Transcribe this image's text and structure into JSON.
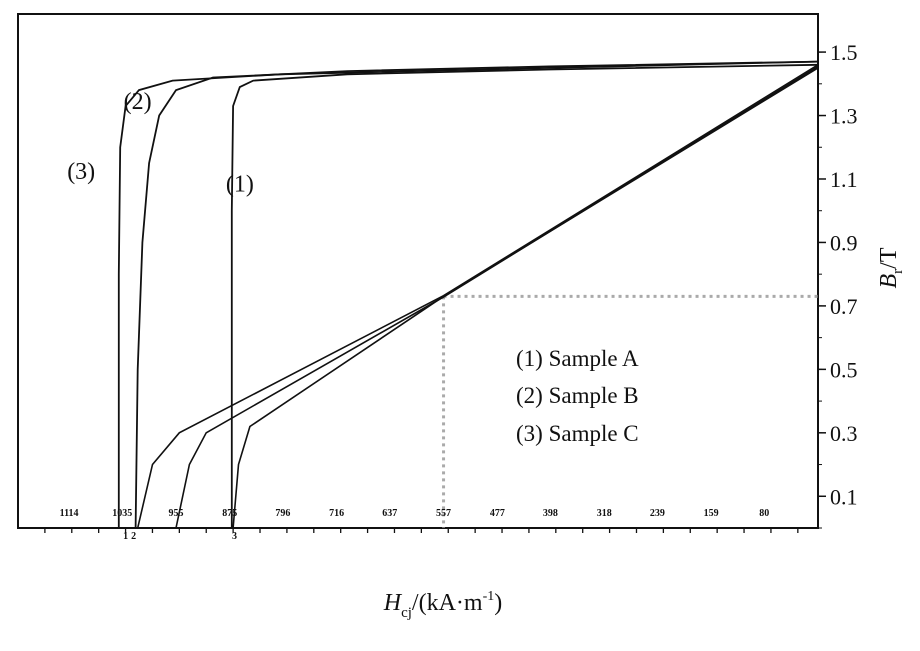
{
  "chart_data": {
    "type": "line",
    "title": "",
    "xlabel": {
      "main": "H",
      "sub": "cj",
      "rest": "/(kA·m",
      "sup": "-1",
      "close": ")"
    },
    "ylabel": {
      "main": "B",
      "sub": "r",
      "rest": "/T"
    },
    "x_tick_labels": [
      "1114",
      "1035",
      "955",
      "875",
      "796",
      "716",
      "637",
      "557",
      "477",
      "398",
      "318",
      "239",
      "159",
      "80"
    ],
    "x_ticks_values": [
      1114,
      1035,
      955,
      875,
      796,
      716,
      637,
      557,
      477,
      398,
      318,
      239,
      159,
      80
    ],
    "x_range": [
      1190,
      0
    ],
    "y_tick_labels": [
      "0.1",
      "0.3",
      "0.5",
      "0.7",
      "0.9",
      "1.1",
      "1.3",
      "1.5"
    ],
    "y_ticks_values": [
      0.1,
      0.3,
      0.5,
      0.7,
      0.9,
      1.1,
      1.3,
      1.5
    ],
    "y_range": [
      0.0,
      1.62
    ],
    "x_axis_marks": [
      "1",
      "2",
      "3"
    ],
    "x_axis_marks_x": [
      1030,
      1018,
      868
    ],
    "series": [
      {
        "name": "Sample A",
        "marker": "(1)",
        "marker_at": {
          "x": 860,
          "y": 1.06
        },
        "points": [
          [
            872,
            0.0
          ],
          [
            872,
            1.0
          ],
          [
            870,
            1.33
          ],
          [
            860,
            1.39
          ],
          [
            840,
            1.41
          ],
          [
            700,
            1.43
          ],
          [
            400,
            1.445
          ],
          [
            0,
            1.46
          ]
        ]
      },
      {
        "name": "Sample B",
        "marker": "(2)",
        "marker_at": {
          "x": 1012,
          "y": 1.32
        },
        "points": [
          [
            1015,
            0.0
          ],
          [
            1012,
            0.5
          ],
          [
            1005,
            0.9
          ],
          [
            995,
            1.15
          ],
          [
            980,
            1.3
          ],
          [
            955,
            1.38
          ],
          [
            900,
            1.42
          ],
          [
            700,
            1.44
          ],
          [
            400,
            1.455
          ],
          [
            0,
            1.47
          ]
        ]
      },
      {
        "name": "Sample C",
        "marker": "(3)",
        "marker_at": {
          "x": 1096,
          "y": 1.1
        },
        "points": [
          [
            1040,
            0.0
          ],
          [
            1040,
            0.8
          ],
          [
            1038,
            1.2
          ],
          [
            1030,
            1.33
          ],
          [
            1010,
            1.38
          ],
          [
            960,
            1.41
          ],
          [
            800,
            1.43
          ],
          [
            400,
            1.45
          ],
          [
            0,
            1.47
          ]
        ]
      }
    ],
    "recoil_lines": [
      {
        "points": [
          [
            1012,
            0.0
          ],
          [
            990,
            0.2
          ],
          [
            950,
            0.3
          ],
          [
            557,
            0.732
          ],
          [
            0,
            1.46
          ]
        ]
      },
      {
        "points": [
          [
            955,
            0.0
          ],
          [
            935,
            0.2
          ],
          [
            910,
            0.3
          ],
          [
            557,
            0.728
          ],
          [
            0,
            1.455
          ]
        ]
      },
      {
        "points": [
          [
            870,
            0.0
          ],
          [
            862,
            0.2
          ],
          [
            845,
            0.32
          ],
          [
            557,
            0.73
          ],
          [
            0,
            1.45
          ]
        ]
      }
    ],
    "reference_point": {
      "x": 557,
      "y": 0.73
    },
    "legend": {
      "placement": "lower-right",
      "entries": [
        "(1) Sample A",
        "(2) Sample B",
        "(3) Sample C"
      ]
    },
    "grid": false,
    "y_axis_side": "right"
  }
}
